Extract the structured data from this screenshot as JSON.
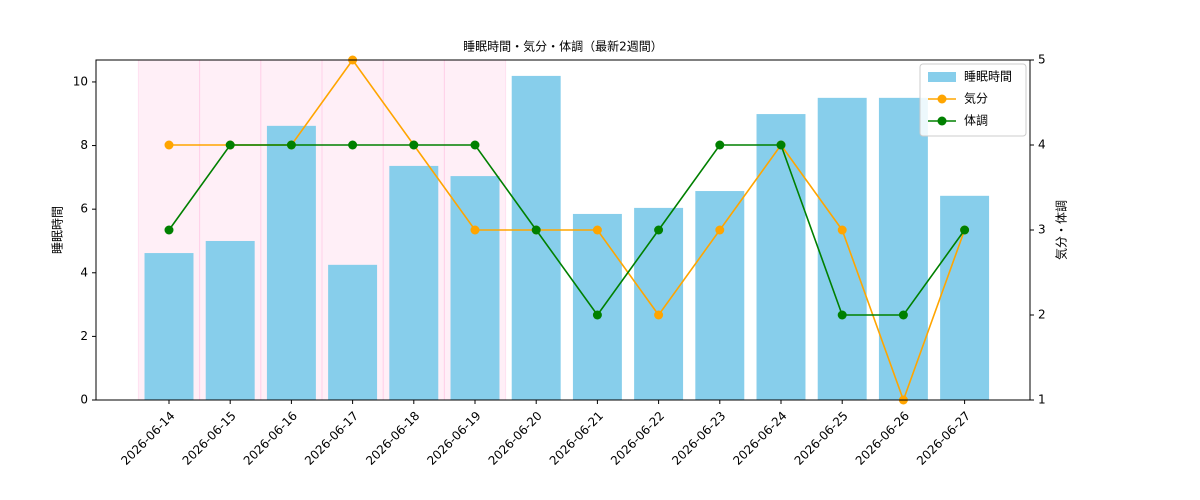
{
  "chart_data": {
    "type": "bar-line",
    "title": "睡眠時間・気分・体調（最新2週間）",
    "y_label": "睡眠時間",
    "y2_label": "気分・体調",
    "categories": [
      "2026-06-14",
      "2026-06-15",
      "2026-06-16",
      "2026-06-17",
      "2026-06-18",
      "2026-06-19",
      "2026-06-20",
      "2026-06-21",
      "2026-06-22",
      "2026-06-23",
      "2026-06-24",
      "2026-06-25",
      "2026-06-26",
      "2026-06-27"
    ],
    "shaded": [
      true,
      true,
      true,
      true,
      true,
      true,
      false,
      false,
      false,
      false,
      false,
      false,
      false,
      false
    ],
    "shade_color": "#ffc0e0",
    "series": [
      {
        "name": "睡眠時間",
        "type": "bar",
        "color": "#87ceeb",
        "values": [
          4.62,
          5.0,
          8.62,
          4.25,
          7.36,
          7.04,
          10.19,
          5.85,
          6.04,
          6.57,
          8.99,
          9.5,
          9.5,
          6.42
        ]
      },
      {
        "name": "気分",
        "type": "line",
        "axis": "y2",
        "color": "#ffa500",
        "values": [
          4,
          4,
          4,
          5,
          4,
          3,
          3,
          3,
          2,
          3,
          4,
          3,
          1,
          3
        ]
      },
      {
        "name": "体調",
        "type": "line",
        "axis": "y2",
        "color": "#008000",
        "values": [
          3,
          4,
          4,
          4,
          4,
          4,
          3,
          2,
          3,
          4,
          4,
          2,
          2,
          3
        ]
      }
    ],
    "ylim": [
      0,
      10.69
    ],
    "yticks": [
      0,
      2,
      4,
      6,
      8,
      10
    ],
    "y2lim": [
      1,
      5
    ],
    "y2ticks": [
      1,
      2,
      3,
      4,
      5
    ],
    "legend": "upper right"
  }
}
